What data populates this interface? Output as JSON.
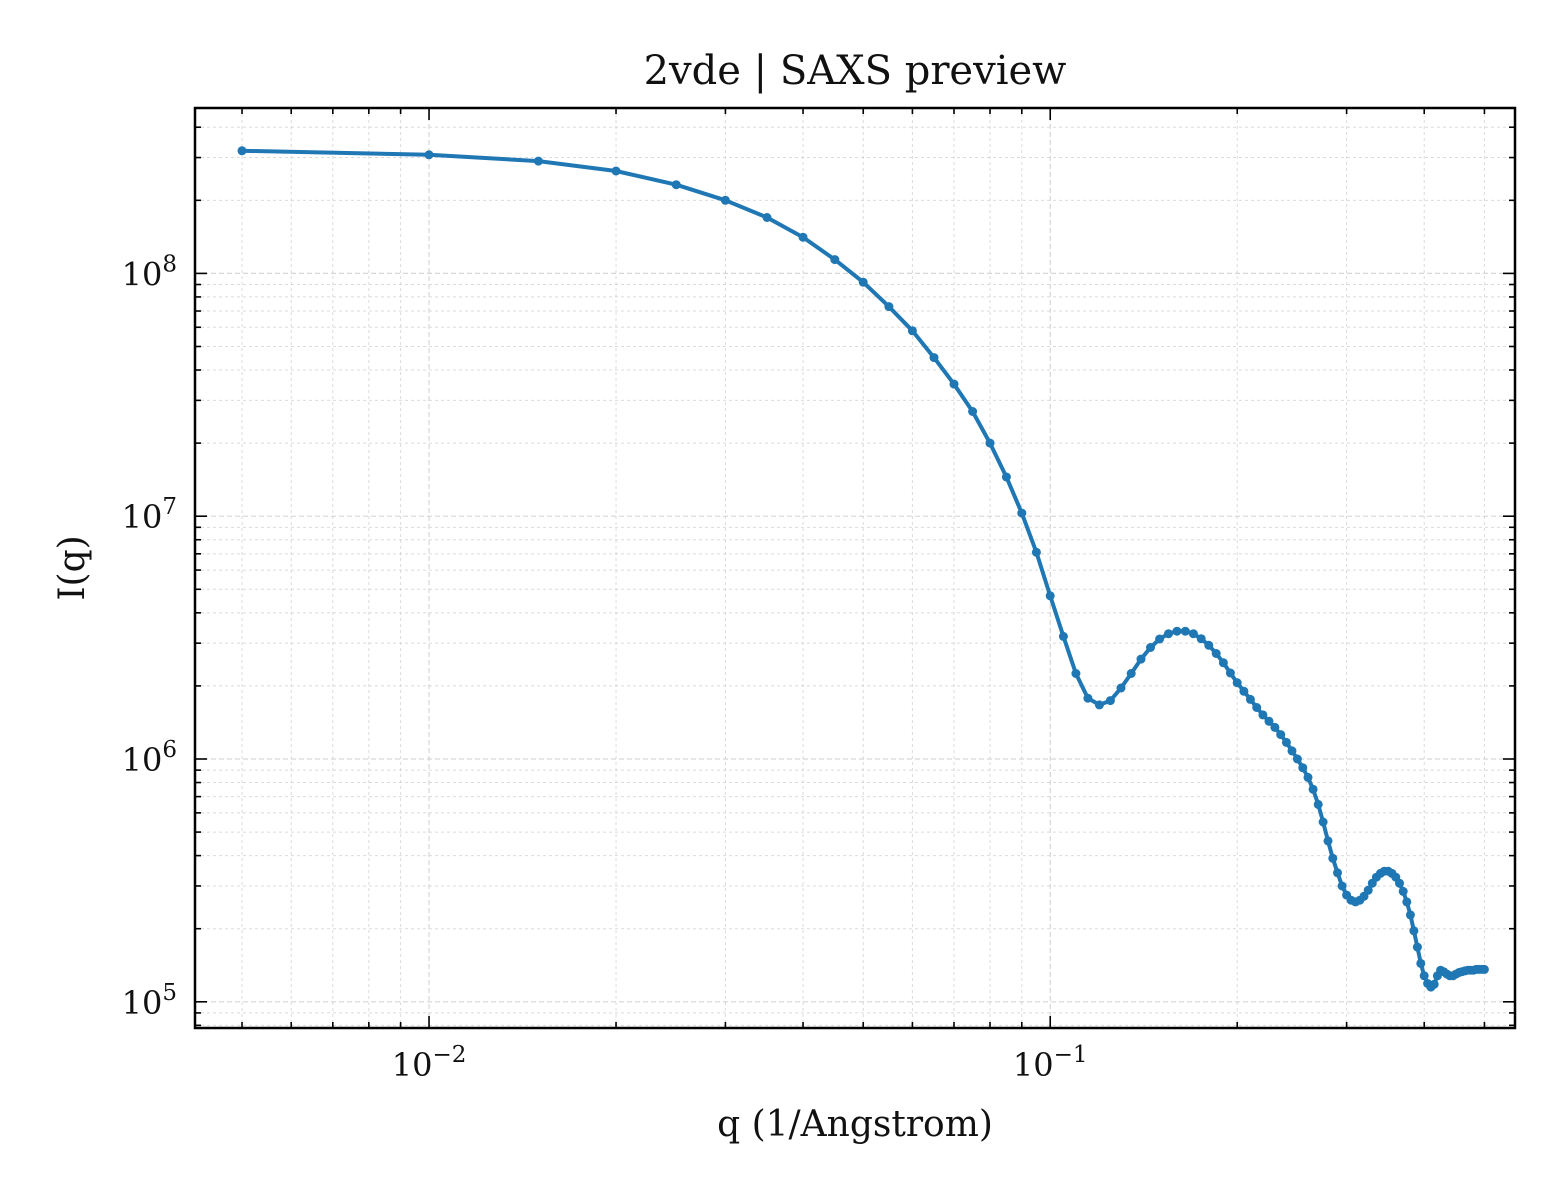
{
  "chart_data": {
    "type": "line",
    "title": "2vde | SAXS preview",
    "xlabel": "q (1/Angstrom)",
    "ylabel": "I(q)",
    "x_scale": "log",
    "y_scale": "log",
    "xlim": [
      0.0042,
      0.56
    ],
    "ylim": [
      78000,
      480000000
    ],
    "grid": true,
    "x_ticks": [
      {
        "value": 0.01,
        "base": "10",
        "exp": "−2"
      },
      {
        "value": 0.1,
        "base": "10",
        "exp": "−1"
      }
    ],
    "y_ticks": [
      {
        "value": 100000,
        "base": "10",
        "exp": "5"
      },
      {
        "value": 1000000,
        "base": "10",
        "exp": "6"
      },
      {
        "value": 10000000,
        "base": "10",
        "exp": "7"
      },
      {
        "value": 100000000,
        "base": "10",
        "exp": "8"
      }
    ],
    "series": [
      {
        "color": "#1f77b4",
        "x": [
          0.005,
          0.01,
          0.015,
          0.02,
          0.025,
          0.03,
          0.035,
          0.04,
          0.045,
          0.05,
          0.055,
          0.06,
          0.065,
          0.07,
          0.075,
          0.08,
          0.085,
          0.09,
          0.095,
          0.1,
          0.105,
          0.11,
          0.115,
          0.12,
          0.125,
          0.13,
          0.135,
          0.14,
          0.145,
          0.15,
          0.155,
          0.16,
          0.165,
          0.17,
          0.175,
          0.18,
          0.185,
          0.19,
          0.195,
          0.2,
          0.205,
          0.21,
          0.215,
          0.22,
          0.225,
          0.23,
          0.235,
          0.24,
          0.245,
          0.25,
          0.255,
          0.26,
          0.265,
          0.27,
          0.275,
          0.28,
          0.285,
          0.29,
          0.295,
          0.3,
          0.305,
          0.31,
          0.315,
          0.32,
          0.325,
          0.33,
          0.335,
          0.34,
          0.345,
          0.35,
          0.355,
          0.36,
          0.365,
          0.37,
          0.375,
          0.38,
          0.385,
          0.39,
          0.395,
          0.4,
          0.405,
          0.41,
          0.415,
          0.42,
          0.425,
          0.43,
          0.435,
          0.44,
          0.445,
          0.45,
          0.455,
          0.46,
          0.465,
          0.47,
          0.475,
          0.48,
          0.485,
          0.49,
          0.495,
          0.5
        ],
        "y": [
          320000000,
          308000000,
          290000000,
          264000000,
          232000000,
          200000000,
          170000000,
          141000000,
          114000000,
          92000000,
          73000000,
          58000000,
          45000000,
          35000000,
          27000000,
          20000000,
          14500000,
          10300000,
          7100000,
          4700000,
          3200000,
          2250000,
          1780000,
          1670000,
          1740000,
          1960000,
          2250000,
          2580000,
          2880000,
          3120000,
          3280000,
          3360000,
          3360000,
          3280000,
          3130000,
          2940000,
          2720000,
          2490000,
          2260000,
          2060000,
          1900000,
          1760000,
          1630000,
          1520000,
          1430000,
          1350000,
          1260000,
          1170000,
          1080000,
          1000000,
          920000,
          840000,
          750000,
          650000,
          550000,
          460000,
          390000,
          340000,
          300000,
          275000,
          262000,
          258000,
          262000,
          272000,
          288000,
          308000,
          326000,
          338000,
          345000,
          345000,
          338000,
          326000,
          308000,
          285000,
          258000,
          228000,
          196000,
          168000,
          144000,
          128000,
          119000,
          115000,
          118000,
          128000,
          135000,
          133000,
          130000,
          128000,
          128000,
          130000,
          132000,
          133000,
          134000,
          135000,
          135000,
          135000,
          136000,
          136000,
          136000,
          136000
        ]
      }
    ]
  }
}
